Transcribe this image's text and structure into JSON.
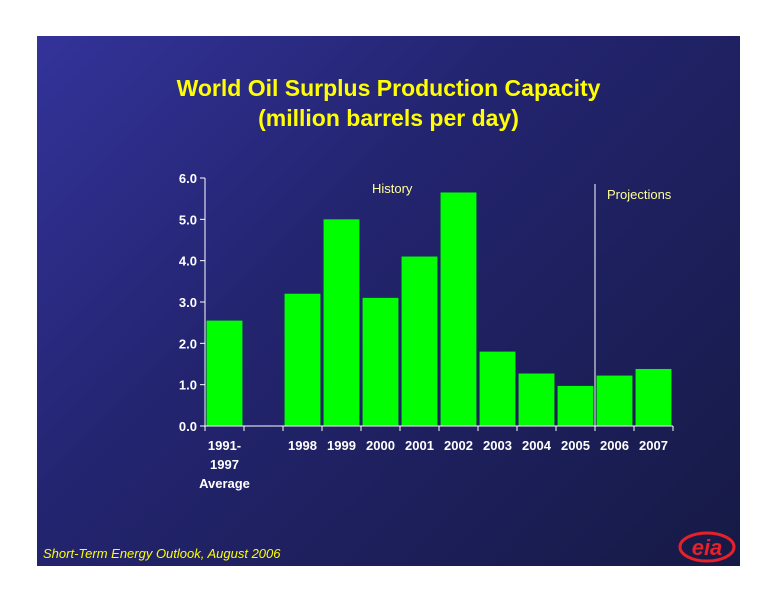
{
  "slide": {
    "title_line1": "World Oil Surplus Production Capacity",
    "title_line2": "(million barrels per day)",
    "footer": "Short-Term Energy Outlook, August 2006",
    "logo_text": "eia"
  },
  "colors": {
    "bar": "#00ff00",
    "title": "#ffff00",
    "axis_text": "#ffffff",
    "annotation": "#ffff99",
    "background": "#23246f",
    "logo": "#e8202a"
  },
  "chart_data": {
    "type": "bar",
    "title": "World Oil Surplus Production Capacity",
    "subtitle": "(million barrels per day)",
    "xlabel": "",
    "ylabel": "",
    "ylim": [
      0,
      6
    ],
    "yticks": [
      "0.0",
      "1.0",
      "2.0",
      "3.0",
      "4.0",
      "5.0",
      "6.0"
    ],
    "categories": [
      [
        "1991-",
        "1997",
        "Average"
      ],
      [
        ""
      ],
      [
        "1998"
      ],
      [
        "1999"
      ],
      [
        "2000"
      ],
      [
        "2001"
      ],
      [
        "2002"
      ],
      [
        "2003"
      ],
      [
        "2004"
      ],
      [
        "2005"
      ],
      [
        "2006"
      ],
      [
        "2007"
      ]
    ],
    "values": [
      2.55,
      null,
      3.2,
      5.0,
      3.1,
      4.1,
      5.65,
      1.8,
      1.27,
      0.97,
      1.22,
      1.38
    ],
    "annotations": [
      {
        "text": "History",
        "region": "history"
      },
      {
        "text": "Projections",
        "region": "projections"
      }
    ],
    "divider_after_category": "2005",
    "grid": false,
    "legend": "none"
  }
}
